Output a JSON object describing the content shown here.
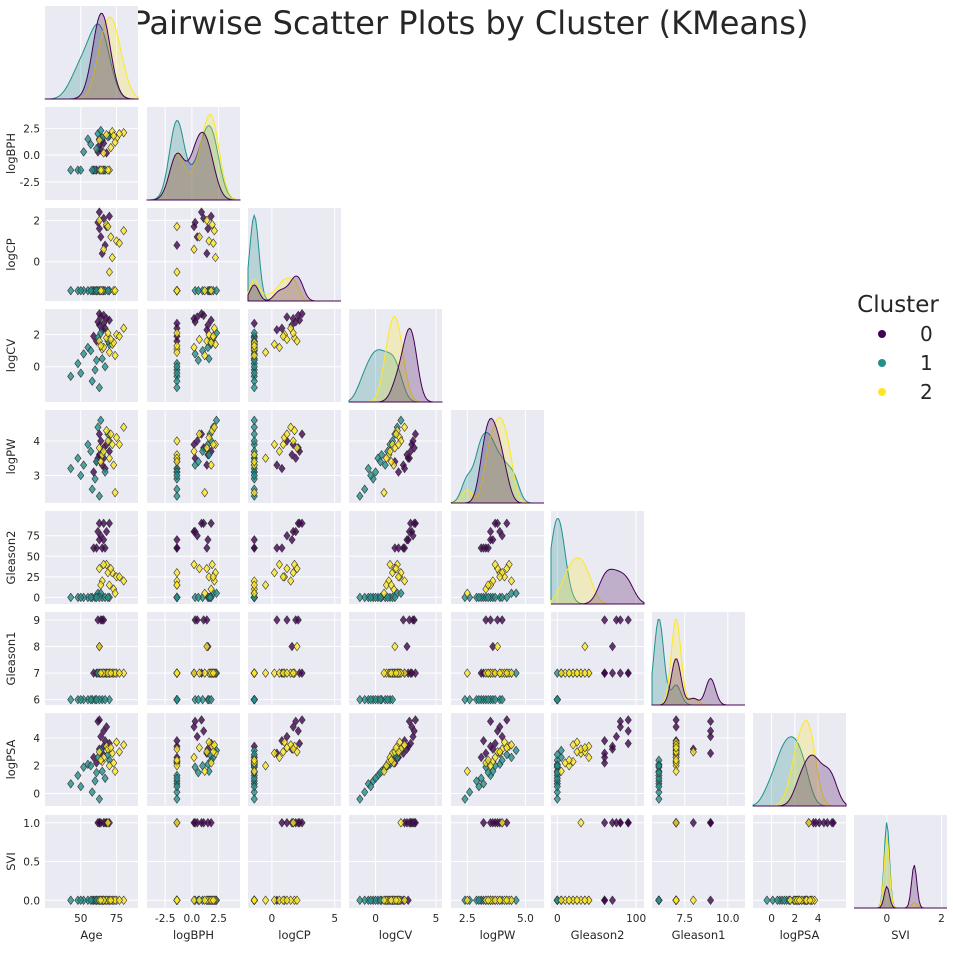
{
  "title": "Pairwise Scatter Plots by Cluster (KMeans)",
  "legend": {
    "title": "Cluster",
    "items": [
      {
        "label": "0",
        "color": "#440154"
      },
      {
        "label": "1",
        "color": "#21918c"
      },
      {
        "label": "2",
        "color": "#fde725"
      }
    ]
  },
  "colors": {
    "axes_bg": "#eaeaf2",
    "grid": "#ffffff",
    "text": "#262626",
    "edge": "#333333"
  },
  "chart_data": {
    "type": "scatter",
    "layout": "lower-triangle pairplot, KDE on diagonal",
    "grid": true,
    "marker": "diamond",
    "legend_placement": "right",
    "variables": [
      {
        "name": "Age",
        "ticks": [
          50,
          75
        ],
        "tick_labels": [
          "50",
          "75"
        ]
      },
      {
        "name": "logBPH",
        "ticks": [
          -2.5,
          0.0,
          2.5
        ],
        "tick_labels": [
          "-2.5",
          "0.0",
          "2.5"
        ]
      },
      {
        "name": "logCP",
        "ticks": [
          0,
          2
        ],
        "tick_labels": [
          "0",
          "2"
        ],
        "x_ticks": [
          0,
          5
        ],
        "x_tick_labels": [
          "0",
          "5"
        ]
      },
      {
        "name": "logCV",
        "ticks": [
          0,
          2
        ],
        "tick_labels": [
          "0",
          "2"
        ],
        "x_ticks": [
          0,
          5
        ],
        "x_tick_labels": [
          "0",
          "5"
        ]
      },
      {
        "name": "logPW",
        "ticks": [
          3,
          4
        ],
        "tick_labels": [
          "3",
          "4"
        ],
        "x_ticks": [
          2.5,
          5.0
        ],
        "x_tick_labels": [
          "2.5",
          "5.0"
        ]
      },
      {
        "name": "Gleason2",
        "ticks": [
          0,
          25,
          50,
          75
        ],
        "tick_labels": [
          "0",
          "25",
          "50",
          "75"
        ],
        "x_ticks": [
          0,
          100
        ],
        "x_tick_labels": [
          "0",
          "100"
        ]
      },
      {
        "name": "Gleason1",
        "ticks": [
          6,
          7,
          8,
          9
        ],
        "tick_labels": [
          "6",
          "7",
          "8",
          "9"
        ],
        "x_ticks": [
          7.5,
          10.0
        ],
        "x_tick_labels": [
          "7.5",
          "10.0"
        ]
      },
      {
        "name": "logPSA",
        "ticks": [
          0,
          2,
          4
        ],
        "tick_labels": [
          "0",
          "2",
          "4"
        ],
        "x_ticks": [
          0,
          2,
          4
        ],
        "x_tick_labels": [
          "0",
          "2",
          "4"
        ]
      },
      {
        "name": "SVI",
        "ticks": [
          0.0,
          0.5,
          1.0
        ],
        "tick_labels": [
          "0.0",
          "0.5",
          "1.0"
        ],
        "x_ticks": [
          0,
          2
        ],
        "x_tick_labels": [
          "0",
          "2"
        ]
      }
    ],
    "points": {
      "cluster_0": [
        [
          62,
          0.3,
          1.9,
          2.8,
          3.5,
          80,
          9,
          5.2,
          1
        ],
        [
          66,
          1.1,
          2.1,
          3.2,
          3.8,
          90,
          9,
          4.5,
          1
        ],
        [
          67,
          -1.4,
          0.8,
          2.4,
          3.2,
          60,
          7,
          3.8,
          1
        ],
        [
          63,
          1.5,
          1.6,
          2.6,
          3.6,
          70,
          8,
          3.2,
          1
        ],
        [
          59,
          -1.4,
          -1.4,
          1.9,
          3.1,
          60,
          7,
          2.6,
          0
        ],
        [
          64,
          0.5,
          1.2,
          3.1,
          4.0,
          75,
          9,
          4.1,
          1
        ],
        [
          70,
          1.8,
          2.2,
          2.9,
          3.7,
          90,
          7,
          3.6,
          1
        ],
        [
          61,
          -1.4,
          -1.4,
          1.6,
          3.4,
          60,
          7,
          2.2,
          0
        ],
        [
          68,
          0.2,
          1.7,
          3.0,
          3.9,
          80,
          7,
          4.8,
          1
        ],
        [
          65,
          1.4,
          0.4,
          2.3,
          3.3,
          60,
          9,
          2.9,
          0
        ],
        [
          66,
          -1.4,
          -1.4,
          2.7,
          3.5,
          70,
          7,
          3.4,
          0
        ],
        [
          63,
          0.9,
          2.4,
          3.3,
          4.2,
          90,
          7,
          5.3,
          1
        ]
      ],
      "cluster_1": [
        [
          43,
          -1.4,
          -1.4,
          -0.6,
          3.2,
          0,
          6,
          0.7,
          0
        ],
        [
          48,
          -1.4,
          -1.4,
          0.2,
          3.5,
          0,
          6,
          1.3,
          0
        ],
        [
          55,
          1.5,
          -1.4,
          1.2,
          3.9,
          0,
          6,
          2.1,
          0
        ],
        [
          60,
          -1.4,
          -1.4,
          -0.2,
          2.9,
          0,
          6,
          0.9,
          0
        ],
        [
          62,
          2.0,
          -1.4,
          1.8,
          4.4,
          5,
          7,
          2.6,
          0
        ],
        [
          65,
          1.6,
          -1.4,
          0.5,
          3.6,
          0,
          6,
          1.6,
          0
        ],
        [
          58,
          -1.4,
          -1.4,
          -0.9,
          2.6,
          0,
          6,
          0.1,
          0
        ],
        [
          70,
          1.8,
          -1.4,
          1.4,
          4.0,
          0,
          6,
          2.4,
          0
        ],
        [
          52,
          0.3,
          -1.4,
          0.8,
          3.3,
          0,
          6,
          1.9,
          0
        ],
        [
          67,
          -1.4,
          -1.4,
          0.0,
          3.1,
          0,
          6,
          1.1,
          0
        ],
        [
          64,
          2.3,
          -1.4,
          2.1,
          4.6,
          5,
          7,
          3.1,
          0
        ],
        [
          50,
          -1.4,
          -1.4,
          -0.4,
          3.0,
          0,
          6,
          0.5,
          0
        ],
        [
          57,
          1.0,
          -1.4,
          1.0,
          3.7,
          0,
          6,
          2.0,
          0
        ],
        [
          63,
          -1.4,
          -1.4,
          -1.3,
          2.4,
          0,
          6,
          -0.4,
          0
        ],
        [
          69,
          1.7,
          -1.4,
          1.6,
          4.2,
          0,
          7,
          2.8,
          0
        ],
        [
          61,
          0.6,
          -1.4,
          0.4,
          3.4,
          0,
          6,
          1.5,
          0
        ]
      ],
      "cluster_2": [
        [
          68,
          1.9,
          1.8,
          1.8,
          4.3,
          40,
          7,
          3.4,
          0
        ],
        [
          72,
          2.2,
          0.2,
          1.4,
          3.9,
          30,
          7,
          2.9,
          0
        ],
        [
          65,
          -1.4,
          -1.4,
          1.1,
          3.6,
          20,
          7,
          2.3,
          0
        ],
        [
          75,
          1.6,
          1.0,
          2.0,
          4.1,
          25,
          7,
          3.7,
          0
        ],
        [
          63,
          1.4,
          2.0,
          1.6,
          3.8,
          35,
          8,
          3.0,
          0
        ],
        [
          70,
          -1.4,
          -0.5,
          0.9,
          3.5,
          15,
          7,
          2.0,
          0
        ],
        [
          80,
          2.1,
          1.5,
          2.4,
          4.4,
          20,
          7,
          3.5,
          0
        ],
        [
          66,
          0.2,
          0.6,
          1.2,
          3.7,
          40,
          7,
          2.6,
          0
        ],
        [
          73,
          1.8,
          -1.4,
          1.5,
          3.3,
          10,
          7,
          2.2,
          0
        ],
        [
          69,
          -1.4,
          1.7,
          2.1,
          4.0,
          30,
          7,
          3.2,
          1
        ],
        [
          74,
          1.2,
          -1.4,
          0.7,
          2.5,
          5,
          7,
          1.6,
          0
        ],
        [
          77,
          2.0,
          0.9,
          1.9,
          3.9,
          25,
          7,
          3.0,
          0
        ],
        [
          64,
          -1.4,
          -1.4,
          1.3,
          3.4,
          15,
          7,
          2.4,
          0
        ],
        [
          71,
          0.7,
          1.2,
          1.7,
          4.2,
          35,
          7,
          3.3,
          0
        ]
      ]
    },
    "diagonal_kde": "density by cluster, filled"
  }
}
